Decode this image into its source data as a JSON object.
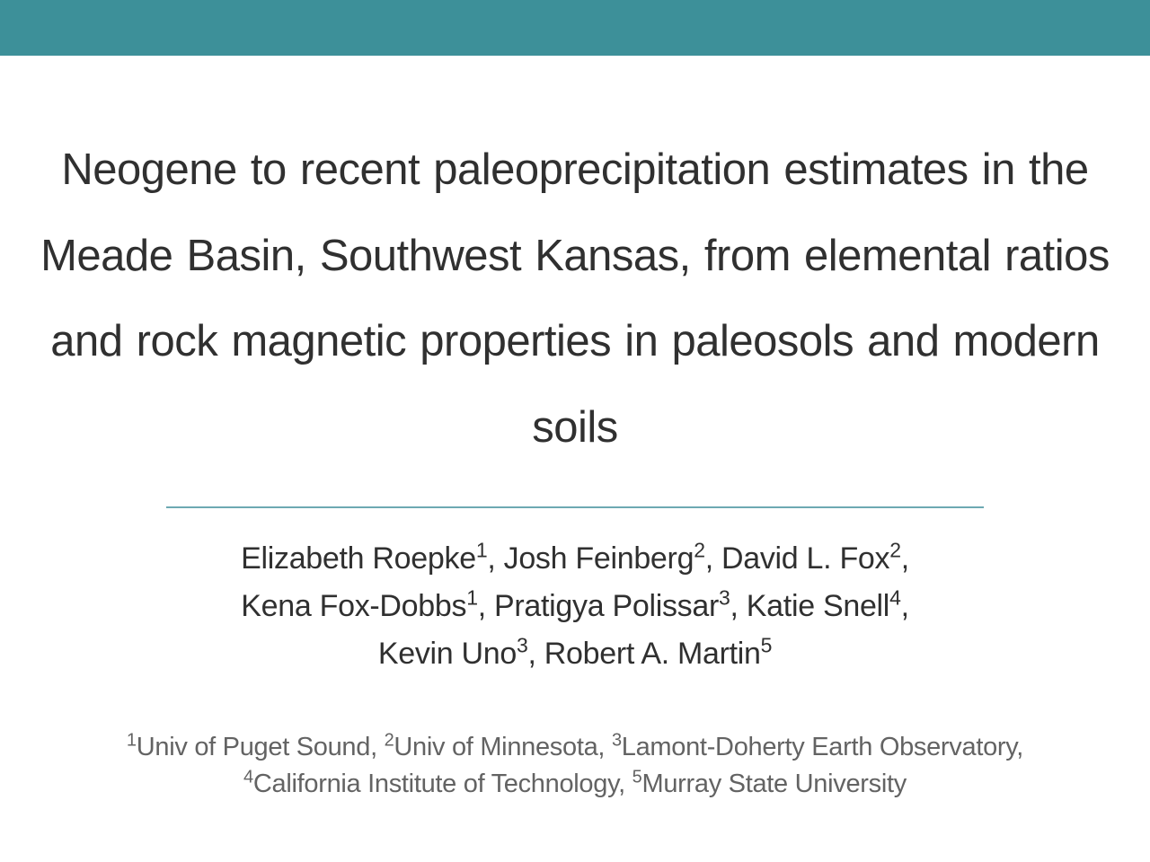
{
  "colors": {
    "banner": "#3d9099",
    "divider": "#6da9b2",
    "text": "#303030",
    "affil_text": "#636363"
  },
  "title": "Neogene to recent paleoprecipitation estimates in the Meade Basin, Southwest Kansas, from elemental ratios and rock magnetic properties in paleosols and modern soils",
  "authors": [
    {
      "name": "Elizabeth Roepke",
      "affil": "1"
    },
    {
      "name": "Josh Feinberg",
      "affil": "2"
    },
    {
      "name": "David L. Fox",
      "affil": "2"
    },
    {
      "name": "Kena Fox-Dobbs",
      "affil": "1"
    },
    {
      "name": "Pratigya Polissar",
      "affil": "3"
    },
    {
      "name": "Katie Snell",
      "affil": "4"
    },
    {
      "name": "Kevin Uno",
      "affil": "3"
    },
    {
      "name": "Robert A. Martin",
      "affil": "5"
    }
  ],
  "affiliations": [
    {
      "num": "1",
      "name": "Univ of Puget Sound"
    },
    {
      "num": "2",
      "name": "Univ of Minnesota"
    },
    {
      "num": "3",
      "name": "Lamont-Doherty Earth Observatory"
    },
    {
      "num": "4",
      "name": "California Institute of Technology"
    },
    {
      "num": "5",
      "name": "Murray State University"
    }
  ]
}
